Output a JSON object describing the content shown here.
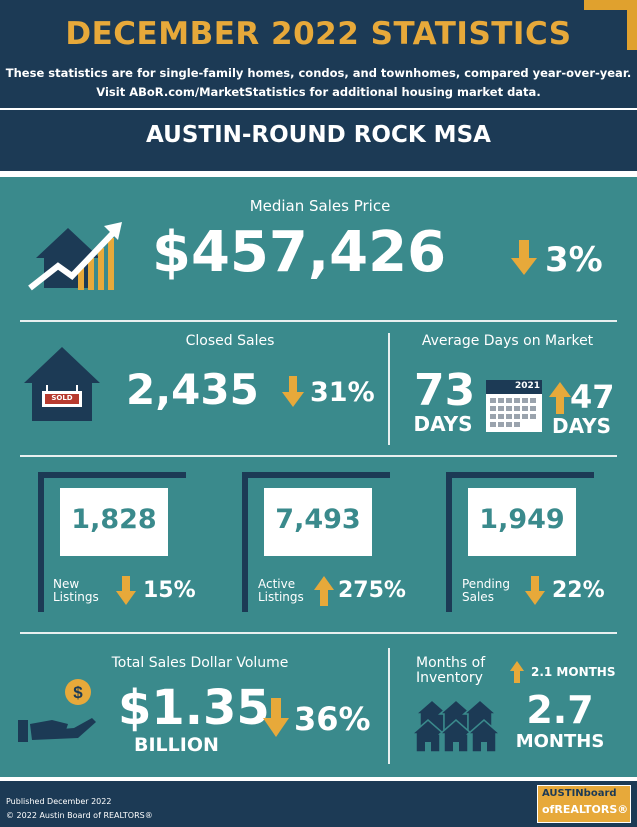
{
  "header": {
    "title": "DECEMBER 2022 STATISTICS",
    "subtitle_line1": "These statistics are for single-family homes, condos, and townhomes, compared year-over-year.",
    "subtitle_line2": "Visit ABoR.com/MarketStatistics for additional housing market data.",
    "region": "AUSTIN-ROUND ROCK MSA"
  },
  "median_price": {
    "label": "Median Sales Price",
    "value": "$457,426",
    "change": "3%",
    "direction": "down"
  },
  "closed_sales": {
    "label": "Closed Sales",
    "value": "2,435",
    "change": "31%",
    "direction": "down",
    "sign_text": "SOLD"
  },
  "days_on_market": {
    "label": "Average Days on Market",
    "value": "73",
    "unit": "DAYS",
    "change": "47",
    "change_unit": "DAYS",
    "direction": "up",
    "calendar_year": "2021"
  },
  "new_listings": {
    "value": "1,828",
    "label_line1": "New",
    "label_line2": "Listings",
    "change": "15%",
    "direction": "down"
  },
  "active_listings": {
    "value": "7,493",
    "label_line1": "Active",
    "label_line2": "Listings",
    "change": "275%",
    "direction": "up"
  },
  "pending_sales": {
    "value": "1,949",
    "label_line1": "Pending",
    "label_line2": "Sales",
    "change": "22%",
    "direction": "down"
  },
  "dollar_volume": {
    "label": "Total Sales Dollar Volume",
    "value": "$1.35",
    "unit": "BILLION",
    "change": "36%",
    "direction": "down"
  },
  "inventory": {
    "label_line1": "Months of",
    "label_line2": "Inventory",
    "change": "2.1 MONTHS",
    "direction": "up",
    "value": "2.7",
    "unit": "MONTHS"
  },
  "footer": {
    "published": "Published December 2022",
    "copyright": "© 2022 Austin Board of REALTORS®",
    "logo_line1": "AUSTINboard",
    "logo_line2": "ofREALTORS®"
  },
  "colors": {
    "navy": "#1c3a55",
    "teal": "#3a8a8c",
    "gold": "#e7a93a",
    "white": "#ffffff"
  },
  "icons": [
    "house-chart-icon",
    "house-sold-icon",
    "calendar-icon",
    "arrow-down-icon",
    "arrow-up-icon",
    "hand-coin-icon",
    "houses-icon"
  ]
}
